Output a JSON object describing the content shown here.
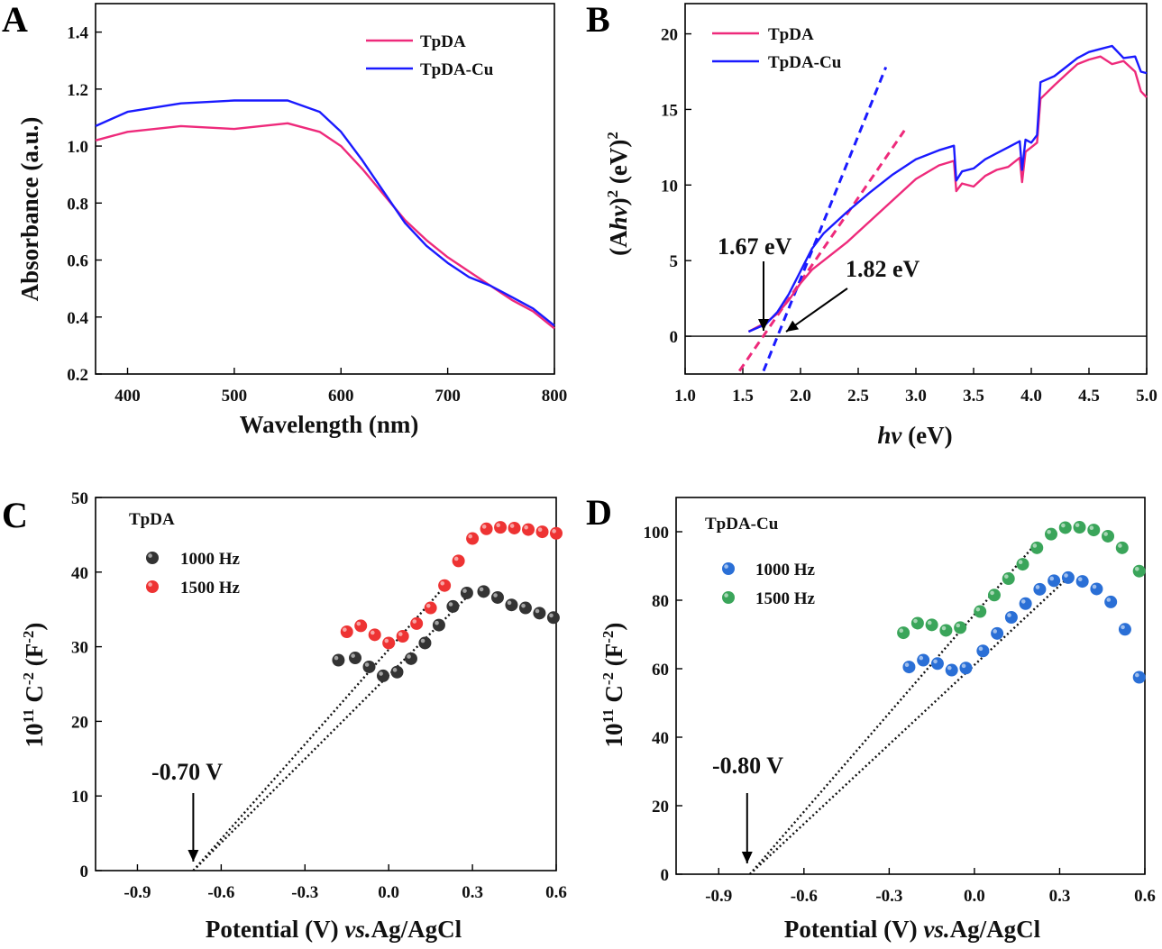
{
  "figure": {
    "panels": [
      "A",
      "B",
      "C",
      "D"
    ]
  },
  "chart_data": [
    {
      "id": "A",
      "type": "line",
      "xlabel": "Wavelength (nm)",
      "ylabel": "Absorbance (a.u.)",
      "xlim": [
        370,
        800
      ],
      "ylim": [
        0.2,
        1.5
      ],
      "xticks": [
        "400",
        "500",
        "600",
        "700",
        "800"
      ],
      "yticks": [
        "0.2",
        "0.4",
        "0.6",
        "0.8",
        "1.0",
        "1.2",
        "1.4"
      ],
      "legend": "top-right",
      "series": [
        {
          "name": "TpDA",
          "color": "#ee2a7b",
          "x": [
            370,
            400,
            450,
            500,
            550,
            580,
            600,
            620,
            640,
            660,
            680,
            700,
            720,
            740,
            760,
            780,
            800
          ],
          "y": [
            1.02,
            1.05,
            1.07,
            1.06,
            1.08,
            1.05,
            1.0,
            0.92,
            0.83,
            0.74,
            0.67,
            0.61,
            0.56,
            0.51,
            0.46,
            0.42,
            0.36
          ]
        },
        {
          "name": "TpDA-Cu",
          "color": "#1a1aff",
          "x": [
            370,
            400,
            450,
            500,
            550,
            580,
            600,
            620,
            640,
            660,
            680,
            700,
            720,
            740,
            760,
            780,
            800
          ],
          "y": [
            1.07,
            1.12,
            1.15,
            1.16,
            1.16,
            1.12,
            1.05,
            0.95,
            0.84,
            0.73,
            0.65,
            0.59,
            0.54,
            0.51,
            0.47,
            0.43,
            0.37
          ]
        }
      ]
    },
    {
      "id": "B",
      "type": "line",
      "xlabel": "hv (eV)",
      "ylabel": "(Ahv)² (eV)²",
      "xlim": [
        1.0,
        5.0
      ],
      "ylim": [
        -2.5,
        22
      ],
      "xticks": [
        "1.0",
        "1.5",
        "2.0",
        "2.5",
        "3.0",
        "3.5",
        "4.0",
        "4.5",
        "5.0"
      ],
      "yticks": [
        "0",
        "5",
        "10",
        "15",
        "20"
      ],
      "legend": "top-left",
      "annotations": [
        "1.67 eV",
        "1.82 eV"
      ],
      "series": [
        {
          "name": "TpDA",
          "color": "#ee2a7b",
          "x": [
            1.55,
            1.7,
            1.8,
            1.9,
            2.0,
            2.1,
            2.2,
            2.4,
            2.6,
            2.8,
            3.0,
            3.2,
            3.33,
            3.35,
            3.4,
            3.5,
            3.6,
            3.7,
            3.8,
            3.9,
            3.92,
            3.95,
            4.0,
            4.05,
            4.08,
            4.2,
            4.3,
            4.4,
            4.5,
            4.6,
            4.7,
            4.8,
            4.9,
            4.95,
            5.0
          ],
          "y": [
            0.3,
            0.9,
            1.5,
            2.4,
            3.5,
            4.4,
            5.0,
            6.2,
            7.6,
            9.0,
            10.4,
            11.3,
            11.6,
            9.6,
            10.1,
            9.9,
            10.6,
            11.0,
            11.2,
            11.8,
            10.2,
            12.2,
            12.5,
            12.8,
            15.7,
            16.6,
            17.3,
            18.0,
            18.3,
            18.5,
            18.0,
            18.2,
            17.5,
            16.2,
            15.8
          ]
        },
        {
          "name": "TpDA-Cu",
          "color": "#1a1aff",
          "x": [
            1.55,
            1.7,
            1.8,
            1.9,
            2.0,
            2.1,
            2.2,
            2.4,
            2.6,
            2.8,
            3.0,
            3.2,
            3.33,
            3.35,
            3.4,
            3.5,
            3.6,
            3.7,
            3.8,
            3.9,
            3.92,
            3.95,
            4.0,
            4.05,
            4.08,
            4.2,
            4.3,
            4.4,
            4.5,
            4.6,
            4.7,
            4.8,
            4.9,
            4.95,
            5.0
          ],
          "y": [
            0.3,
            0.8,
            1.6,
            2.8,
            4.3,
            5.8,
            6.8,
            8.2,
            9.5,
            10.7,
            11.7,
            12.3,
            12.6,
            10.3,
            10.9,
            11.1,
            11.7,
            12.1,
            12.5,
            12.9,
            11.0,
            13.0,
            12.8,
            13.3,
            16.8,
            17.2,
            17.8,
            18.4,
            18.8,
            19.0,
            19.2,
            18.4,
            18.5,
            17.5,
            17.4
          ]
        }
      ],
      "fits": [
        {
          "color": "#ee2a7b",
          "x": [
            1.47,
            2.9
          ],
          "y": [
            -2.3,
            13.6
          ]
        },
        {
          "color": "#1a1aff",
          "x": [
            1.68,
            2.74
          ],
          "y": [
            -2.3,
            17.8
          ]
        }
      ]
    },
    {
      "id": "C",
      "type": "scatter",
      "xlabel": "Potential (V) vs.Ag/AgCl",
      "ylabel": "10¹¹ C⁻² (F⁻²)",
      "xlim": [
        -1.05,
        0.6
      ],
      "ylim": [
        0,
        50
      ],
      "xticks": [
        "-0.9",
        "-0.6",
        "-0.3",
        "0.0",
        "0.3",
        "0.6"
      ],
      "yticks": [
        "0",
        "10",
        "20",
        "30",
        "40",
        "50"
      ],
      "legend": "top-left",
      "legend_title": "TpDA",
      "annotations": [
        "-0.70 V"
      ],
      "series": [
        {
          "name": "1000 Hz",
          "color": "#333333",
          "x": [
            -0.18,
            -0.12,
            -0.07,
            -0.02,
            0.03,
            0.08,
            0.13,
            0.18,
            0.23,
            0.28,
            0.34,
            0.39,
            0.44,
            0.49,
            0.54,
            0.59
          ],
          "y": [
            28.2,
            28.5,
            27.3,
            26.1,
            26.6,
            28.4,
            30.5,
            32.9,
            35.4,
            37.2,
            37.4,
            36.6,
            35.6,
            35.2,
            34.5,
            33.9
          ]
        },
        {
          "name": "1500 Hz",
          "color": "#ee3333",
          "x": [
            -0.15,
            -0.1,
            -0.05,
            0.0,
            0.05,
            0.1,
            0.15,
            0.2,
            0.25,
            0.3,
            0.35,
            0.4,
            0.45,
            0.5,
            0.55,
            0.6
          ],
          "y": [
            32.0,
            32.8,
            31.6,
            30.5,
            31.4,
            33.1,
            35.2,
            38.2,
            41.5,
            44.5,
            45.8,
            46.0,
            45.9,
            45.7,
            45.4,
            45.2
          ]
        }
      ],
      "fits": [
        {
          "x": [
            -0.7,
            0.21
          ],
          "y": [
            0,
            38.5
          ]
        },
        {
          "x": [
            -0.7,
            0.3
          ],
          "y": [
            0,
            37.4
          ]
        }
      ]
    },
    {
      "id": "D",
      "type": "scatter",
      "xlabel": "Potential (V) vs.Ag/AgCl",
      "ylabel": "10¹¹ C⁻² (F⁻²)",
      "xlim": [
        -1.05,
        0.6
      ],
      "ylim": [
        0,
        110
      ],
      "xticks": [
        "-0.9",
        "-0.6",
        "-0.3",
        "0.0",
        "0.3",
        "0.6"
      ],
      "yticks": [
        "0",
        "20",
        "40",
        "60",
        "80",
        "100"
      ],
      "legend": "top-left",
      "legend_title": "TpDA-Cu",
      "annotations": [
        "-0.80 V"
      ],
      "series": [
        {
          "name": "1000 Hz",
          "color": "#2a6fd6",
          "x": [
            -0.23,
            -0.18,
            -0.13,
            -0.08,
            -0.03,
            0.03,
            0.08,
            0.13,
            0.18,
            0.23,
            0.28,
            0.33,
            0.38,
            0.43,
            0.48,
            0.53,
            0.58
          ],
          "y": [
            60.5,
            62.5,
            61.5,
            59.6,
            60.2,
            65.2,
            70.3,
            75.0,
            79.0,
            83.2,
            85.7,
            86.6,
            85.5,
            83.3,
            79.5,
            71.5,
            57.5
          ]
        },
        {
          "name": "1500 Hz",
          "color": "#3aa55a",
          "x": [
            -0.25,
            -0.2,
            -0.15,
            -0.1,
            -0.05,
            0.02,
            0.07,
            0.12,
            0.17,
            0.22,
            0.27,
            0.32,
            0.37,
            0.42,
            0.47,
            0.52,
            0.58
          ],
          "y": [
            70.5,
            73.3,
            72.8,
            71.2,
            72.0,
            76.7,
            81.5,
            86.3,
            90.5,
            95.3,
            99.3,
            101.2,
            101.3,
            100.5,
            98.7,
            95.3,
            88.5
          ]
        }
      ],
      "fits": [
        {
          "x": [
            -0.79,
            0.2
          ],
          "y": [
            0,
            95
          ]
        },
        {
          "x": [
            -0.79,
            0.33
          ],
          "y": [
            0,
            86.6
          ]
        }
      ]
    }
  ]
}
